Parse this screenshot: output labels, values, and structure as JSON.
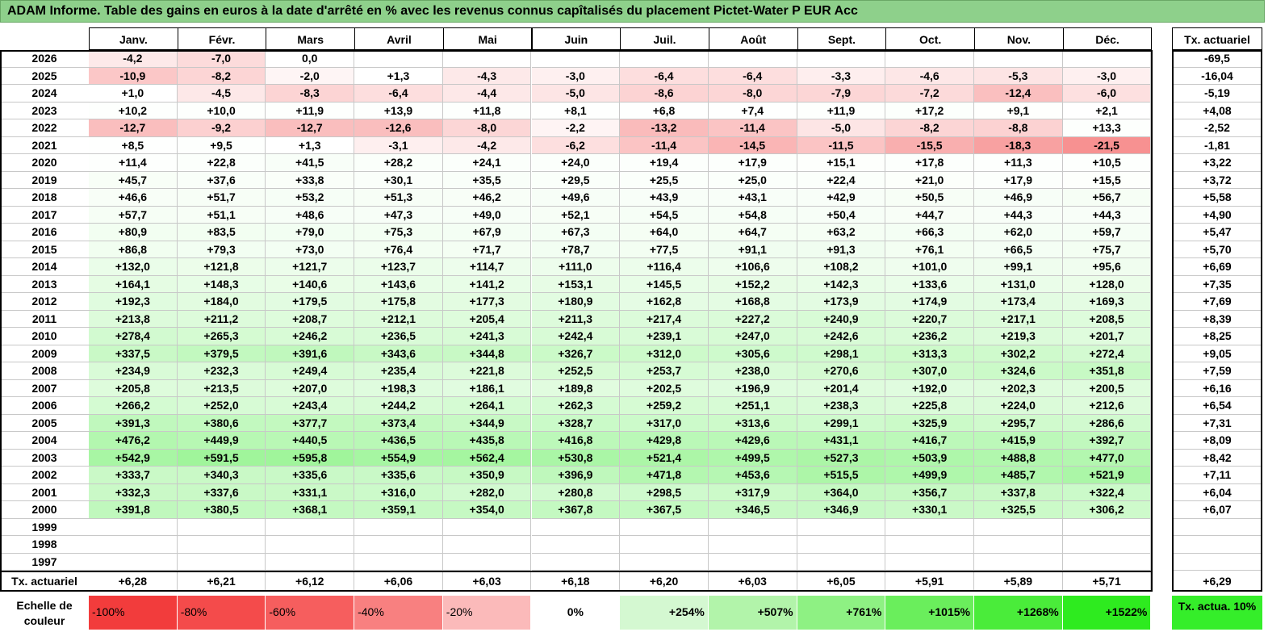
{
  "title": "ADAM Informe. Table des gains en euros à la date d'arrêté en % avec les revenus connus capîtalisés du placement Pictet-Water P EUR Acc",
  "months": [
    "Janv.",
    "Févr.",
    "Mars",
    "Avril",
    "Mai",
    "Juin",
    "Juil.",
    "Août",
    "Sept.",
    "Oct.",
    "Nov.",
    "Déc."
  ],
  "tx_header": "Tx. actuariel",
  "rows": [
    {
      "year": "2026",
      "values": [
        "-4,2",
        "-7,0",
        "0,0",
        "",
        "",
        "",
        "",
        "",
        "",
        "",
        "",
        ""
      ],
      "tx": "-69,5"
    },
    {
      "year": "2025",
      "values": [
        "-10,9",
        "-8,2",
        "-2,0",
        "+1,3",
        "-4,3",
        "-3,0",
        "-6,4",
        "-6,4",
        "-3,3",
        "-4,6",
        "-5,3",
        "-3,0"
      ],
      "tx": "-16,04"
    },
    {
      "year": "2024",
      "values": [
        "+1,0",
        "-4,5",
        "-8,3",
        "-6,4",
        "-4,4",
        "-5,0",
        "-8,6",
        "-8,0",
        "-7,9",
        "-7,2",
        "-12,4",
        "-6,0"
      ],
      "tx": "-5,19"
    },
    {
      "year": "2023",
      "values": [
        "+10,2",
        "+10,0",
        "+11,9",
        "+13,9",
        "+11,8",
        "+8,1",
        "+6,8",
        "+7,4",
        "+11,9",
        "+17,2",
        "+9,1",
        "+2,1"
      ],
      "tx": "+4,08"
    },
    {
      "year": "2022",
      "values": [
        "-12,7",
        "-9,2",
        "-12,7",
        "-12,6",
        "-8,0",
        "-2,2",
        "-13,2",
        "-11,4",
        "-5,0",
        "-8,2",
        "-8,8",
        "+13,3"
      ],
      "tx": "-2,52"
    },
    {
      "year": "2021",
      "values": [
        "+8,5",
        "+9,5",
        "+1,3",
        "-3,1",
        "-4,2",
        "-6,2",
        "-11,4",
        "-14,5",
        "-11,5",
        "-15,5",
        "-18,3",
        "-21,5"
      ],
      "tx": "-1,81"
    },
    {
      "year": "2020",
      "values": [
        "+11,4",
        "+22,8",
        "+41,5",
        "+28,2",
        "+24,1",
        "+24,0",
        "+19,4",
        "+17,9",
        "+15,1",
        "+17,8",
        "+11,3",
        "+10,5"
      ],
      "tx": "+3,22"
    },
    {
      "year": "2019",
      "values": [
        "+45,7",
        "+37,6",
        "+33,8",
        "+30,1",
        "+35,5",
        "+29,5",
        "+25,5",
        "+25,0",
        "+22,4",
        "+21,0",
        "+17,9",
        "+15,5"
      ],
      "tx": "+3,72"
    },
    {
      "year": "2018",
      "values": [
        "+46,6",
        "+51,7",
        "+53,2",
        "+51,3",
        "+46,2",
        "+49,6",
        "+43,9",
        "+43,1",
        "+42,9",
        "+50,5",
        "+46,9",
        "+56,7"
      ],
      "tx": "+5,58"
    },
    {
      "year": "2017",
      "values": [
        "+57,7",
        "+51,1",
        "+48,6",
        "+47,3",
        "+49,0",
        "+52,1",
        "+54,5",
        "+54,8",
        "+50,4",
        "+44,7",
        "+44,3",
        "+44,3"
      ],
      "tx": "+4,90"
    },
    {
      "year": "2016",
      "values": [
        "+80,9",
        "+83,5",
        "+79,0",
        "+75,3",
        "+67,9",
        "+67,3",
        "+64,0",
        "+64,7",
        "+63,2",
        "+66,3",
        "+62,0",
        "+59,7"
      ],
      "tx": "+5,47"
    },
    {
      "year": "2015",
      "values": [
        "+86,8",
        "+79,3",
        "+73,0",
        "+76,4",
        "+71,7",
        "+78,7",
        "+77,5",
        "+91,1",
        "+91,3",
        "+76,1",
        "+66,5",
        "+75,7"
      ],
      "tx": "+5,70"
    },
    {
      "year": "2014",
      "values": [
        "+132,0",
        "+121,8",
        "+121,7",
        "+123,7",
        "+114,7",
        "+111,0",
        "+116,4",
        "+106,6",
        "+108,2",
        "+101,0",
        "+99,1",
        "+95,6"
      ],
      "tx": "+6,69"
    },
    {
      "year": "2013",
      "values": [
        "+164,1",
        "+148,3",
        "+140,6",
        "+143,6",
        "+141,2",
        "+153,1",
        "+145,5",
        "+152,2",
        "+142,3",
        "+133,6",
        "+131,0",
        "+128,0"
      ],
      "tx": "+7,35"
    },
    {
      "year": "2012",
      "values": [
        "+192,3",
        "+184,0",
        "+179,5",
        "+175,8",
        "+177,3",
        "+180,9",
        "+162,8",
        "+168,8",
        "+173,9",
        "+174,9",
        "+173,4",
        "+169,3"
      ],
      "tx": "+7,69"
    },
    {
      "year": "2011",
      "values": [
        "+213,8",
        "+211,2",
        "+208,7",
        "+212,1",
        "+205,4",
        "+211,3",
        "+217,4",
        "+227,2",
        "+240,9",
        "+220,7",
        "+217,1",
        "+208,5"
      ],
      "tx": "+8,39"
    },
    {
      "year": "2010",
      "values": [
        "+278,4",
        "+265,3",
        "+246,2",
        "+236,5",
        "+241,3",
        "+242,4",
        "+239,1",
        "+247,0",
        "+242,6",
        "+236,2",
        "+219,3",
        "+201,7"
      ],
      "tx": "+8,25"
    },
    {
      "year": "2009",
      "values": [
        "+337,5",
        "+379,5",
        "+391,6",
        "+343,6",
        "+344,8",
        "+326,7",
        "+312,0",
        "+305,6",
        "+298,1",
        "+313,3",
        "+302,2",
        "+272,4"
      ],
      "tx": "+9,05"
    },
    {
      "year": "2008",
      "values": [
        "+234,9",
        "+232,3",
        "+249,4",
        "+235,4",
        "+221,8",
        "+252,5",
        "+253,7",
        "+238,0",
        "+270,6",
        "+307,0",
        "+324,6",
        "+351,8"
      ],
      "tx": "+7,59"
    },
    {
      "year": "2007",
      "values": [
        "+205,8",
        "+213,5",
        "+207,0",
        "+198,3",
        "+186,1",
        "+189,8",
        "+202,5",
        "+196,9",
        "+201,4",
        "+192,0",
        "+202,3",
        "+200,5"
      ],
      "tx": "+6,16"
    },
    {
      "year": "2006",
      "values": [
        "+266,2",
        "+252,0",
        "+243,4",
        "+244,2",
        "+264,1",
        "+262,3",
        "+259,2",
        "+251,1",
        "+238,3",
        "+225,8",
        "+224,0",
        "+212,6"
      ],
      "tx": "+6,54"
    },
    {
      "year": "2005",
      "values": [
        "+391,3",
        "+380,6",
        "+377,7",
        "+373,4",
        "+344,9",
        "+328,7",
        "+317,0",
        "+313,6",
        "+299,1",
        "+325,9",
        "+295,7",
        "+286,6"
      ],
      "tx": "+7,31"
    },
    {
      "year": "2004",
      "values": [
        "+476,2",
        "+449,9",
        "+440,5",
        "+436,5",
        "+435,8",
        "+416,8",
        "+429,8",
        "+429,6",
        "+431,1",
        "+416,7",
        "+415,9",
        "+392,7"
      ],
      "tx": "+8,09"
    },
    {
      "year": "2003",
      "values": [
        "+542,9",
        "+591,5",
        "+595,8",
        "+554,9",
        "+562,4",
        "+530,8",
        "+521,4",
        "+499,5",
        "+527,3",
        "+503,9",
        "+488,8",
        "+477,0"
      ],
      "tx": "+8,42"
    },
    {
      "year": "2002",
      "values": [
        "+333,7",
        "+340,3",
        "+335,6",
        "+335,6",
        "+350,9",
        "+396,9",
        "+471,8",
        "+453,6",
        "+515,5",
        "+499,9",
        "+485,7",
        "+521,9"
      ],
      "tx": "+7,11"
    },
    {
      "year": "2001",
      "values": [
        "+332,3",
        "+337,6",
        "+331,1",
        "+316,0",
        "+282,0",
        "+280,8",
        "+298,5",
        "+317,9",
        "+364,0",
        "+356,7",
        "+337,8",
        "+322,4"
      ],
      "tx": "+6,04"
    },
    {
      "year": "2000",
      "values": [
        "+391,8",
        "+380,5",
        "+368,1",
        "+359,1",
        "+354,0",
        "+367,8",
        "+367,5",
        "+346,5",
        "+346,9",
        "+330,1",
        "+325,5",
        "+306,2"
      ],
      "tx": "+6,07"
    },
    {
      "year": "1999",
      "values": [
        "",
        "",
        "",
        "",
        "",
        "",
        "",
        "",
        "",
        "",
        "",
        ""
      ],
      "tx": ""
    },
    {
      "year": "1998",
      "values": [
        "",
        "",
        "",
        "",
        "",
        "",
        "",
        "",
        "",
        "",
        "",
        ""
      ],
      "tx": ""
    },
    {
      "year": "1997",
      "values": [
        "",
        "",
        "",
        "",
        "",
        "",
        "",
        "",
        "",
        "",
        "",
        ""
      ],
      "tx": ""
    }
  ],
  "summary": {
    "label": "Tx. actuariel",
    "values": [
      "+6,28",
      "+6,21",
      "+6,12",
      "+6,06",
      "+6,03",
      "+6,18",
      "+6,20",
      "+6,03",
      "+6,05",
      "+5,91",
      "+5,89",
      "+5,71"
    ],
    "tx": "+6,29"
  },
  "scale": {
    "label": "Echelle de couleur",
    "items": [
      {
        "label": "-100%",
        "color": "#f23c3c"
      },
      {
        "label": "-80%",
        "color": "#f44b4b"
      },
      {
        "label": "-60%",
        "color": "#f65e5e"
      },
      {
        "label": "-40%",
        "color": "#f88080"
      },
      {
        "label": "-20%",
        "color": "#fbbaba"
      },
      {
        "label": "0%",
        "color": "#ffffff"
      },
      {
        "label": "+254%",
        "color": "#d4f8d1"
      },
      {
        "label": "+507%",
        "color": "#b2f4aa"
      },
      {
        "label": "+761%",
        "color": "#8ef183"
      },
      {
        "label": "+1015%",
        "color": "#6aee5c"
      },
      {
        "label": "+1268%",
        "color": "#4aec3a"
      },
      {
        "label": "+1522%",
        "color": "#2eeb1f"
      }
    ],
    "tx_label": "Tx. actua. 10%",
    "tx_color": "#35ee2a"
  },
  "colors": {
    "title_bg": "#8ed08b",
    "negative_max": "#f78e8e",
    "positive_max": "#9ff59a"
  }
}
